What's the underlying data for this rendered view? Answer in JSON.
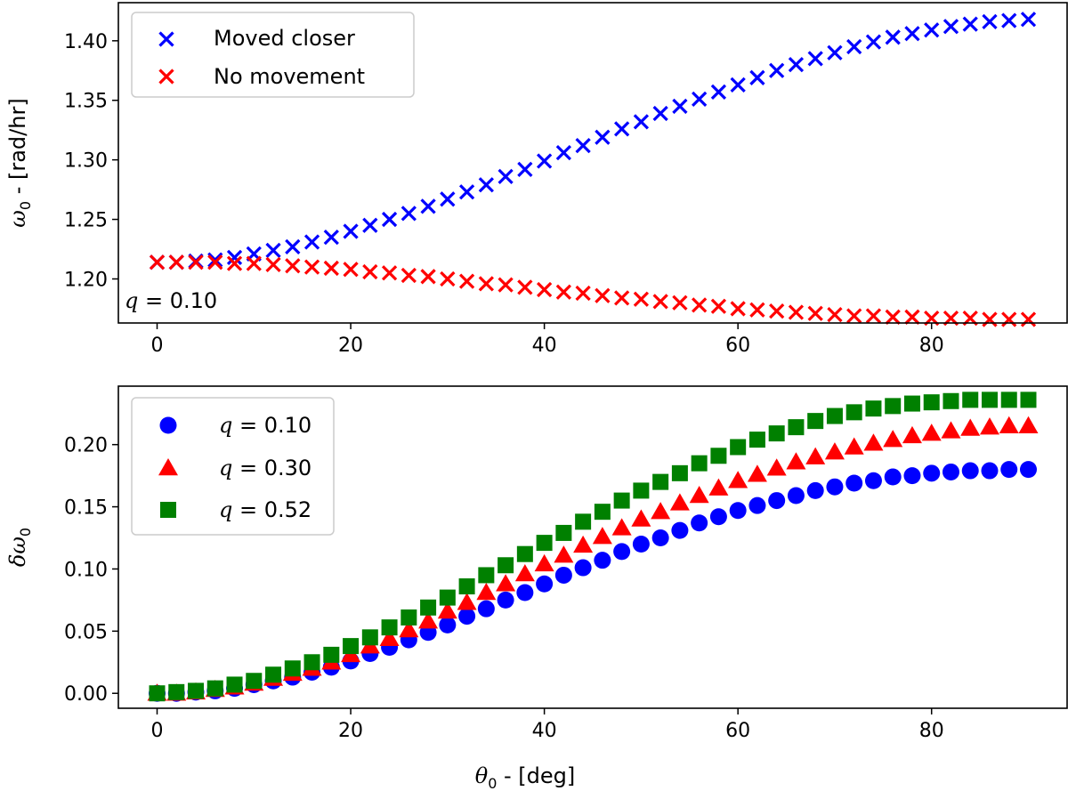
{
  "chart_data": [
    {
      "type": "scatter",
      "title": "",
      "xlabel": "",
      "ylabel_symbol": "ω",
      "ylabel_sub": "0",
      "ylabel_unit": " - [rad/hr]",
      "xlim": [
        -4,
        94
      ],
      "ylim": [
        1.163,
        1.432
      ],
      "xticks": [
        0,
        20,
        40,
        60,
        80
      ],
      "yticks": [
        1.2,
        1.25,
        1.3,
        1.35,
        1.4
      ],
      "ytick_labels": [
        "1.20",
        "1.25",
        "1.30",
        "1.35",
        "1.40"
      ],
      "annotation": {
        "symbol": "q",
        "text": " = 0.10",
        "placement": "bottom-left"
      },
      "legend_placement": "upper-left",
      "series": [
        {
          "name": "Moved closer",
          "marker": "x",
          "color": "#0000ff",
          "x": [
            0,
            2,
            4,
            6,
            8,
            10,
            12,
            14,
            16,
            18,
            20,
            22,
            24,
            26,
            28,
            30,
            32,
            34,
            36,
            38,
            40,
            42,
            44,
            46,
            48,
            50,
            52,
            54,
            56,
            58,
            60,
            62,
            64,
            66,
            68,
            70,
            72,
            74,
            76,
            78,
            80,
            82,
            84,
            86,
            88,
            90
          ],
          "y": [
            1.214,
            1.214,
            1.215,
            1.216,
            1.218,
            1.221,
            1.224,
            1.227,
            1.231,
            1.235,
            1.24,
            1.245,
            1.25,
            1.255,
            1.261,
            1.267,
            1.273,
            1.279,
            1.286,
            1.292,
            1.299,
            1.306,
            1.312,
            1.319,
            1.326,
            1.332,
            1.339,
            1.345,
            1.351,
            1.357,
            1.363,
            1.369,
            1.375,
            1.38,
            1.385,
            1.39,
            1.395,
            1.399,
            1.403,
            1.406,
            1.409,
            1.412,
            1.414,
            1.416,
            1.417,
            1.418
          ]
        },
        {
          "name": "No movement",
          "marker": "x",
          "color": "#ff0000",
          "x": [
            0,
            2,
            4,
            6,
            8,
            10,
            12,
            14,
            16,
            18,
            20,
            22,
            24,
            26,
            28,
            30,
            32,
            34,
            36,
            38,
            40,
            42,
            44,
            46,
            48,
            50,
            52,
            54,
            56,
            58,
            60,
            62,
            64,
            66,
            68,
            70,
            72,
            74,
            76,
            78,
            80,
            82,
            84,
            86,
            88,
            90
          ],
          "y": [
            1.214,
            1.214,
            1.214,
            1.214,
            1.213,
            1.213,
            1.212,
            1.211,
            1.21,
            1.209,
            1.208,
            1.206,
            1.205,
            1.203,
            1.202,
            1.2,
            1.198,
            1.196,
            1.195,
            1.193,
            1.191,
            1.189,
            1.188,
            1.186,
            1.184,
            1.183,
            1.181,
            1.18,
            1.178,
            1.177,
            1.175,
            1.174,
            1.173,
            1.172,
            1.171,
            1.17,
            1.169,
            1.169,
            1.168,
            1.168,
            1.167,
            1.167,
            1.167,
            1.166,
            1.166,
            1.166
          ]
        }
      ]
    },
    {
      "type": "scatter",
      "title": "",
      "xlabel_symbol": "θ",
      "xlabel_sub": "0",
      "xlabel_unit": " - [deg]",
      "ylabel_symbol": "δω",
      "ylabel_sub": "0",
      "xlim": [
        -4,
        94
      ],
      "ylim": [
        -0.012,
        0.247
      ],
      "xticks": [
        0,
        20,
        40,
        60,
        80
      ],
      "yticks": [
        0.0,
        0.05,
        0.1,
        0.15,
        0.2
      ],
      "ytick_labels": [
        "0.00",
        "0.05",
        "0.10",
        "0.15",
        "0.20"
      ],
      "legend_placement": "upper-left",
      "series": [
        {
          "name_symbol": "q",
          "name_value": " = 0.10",
          "marker": "circle",
          "color": "#0000ff",
          "x": [
            0,
            2,
            4,
            6,
            8,
            10,
            12,
            14,
            16,
            18,
            20,
            22,
            24,
            26,
            28,
            30,
            32,
            34,
            36,
            38,
            40,
            42,
            44,
            46,
            48,
            50,
            52,
            54,
            56,
            58,
            60,
            62,
            64,
            66,
            68,
            70,
            72,
            74,
            76,
            78,
            80,
            82,
            84,
            86,
            88,
            90
          ],
          "y": [
            0.0,
            0.0,
            0.001,
            0.002,
            0.004,
            0.007,
            0.01,
            0.013,
            0.017,
            0.021,
            0.026,
            0.032,
            0.037,
            0.043,
            0.049,
            0.055,
            0.062,
            0.068,
            0.075,
            0.081,
            0.088,
            0.095,
            0.101,
            0.107,
            0.114,
            0.12,
            0.125,
            0.131,
            0.137,
            0.142,
            0.147,
            0.151,
            0.155,
            0.159,
            0.163,
            0.166,
            0.169,
            0.171,
            0.174,
            0.175,
            0.177,
            0.178,
            0.179,
            0.179,
            0.18,
            0.18
          ]
        },
        {
          "name_symbol": "q",
          "name_value": " = 0.30",
          "marker": "triangle",
          "color": "#ff0000",
          "x": [
            0,
            2,
            4,
            6,
            8,
            10,
            12,
            14,
            16,
            18,
            20,
            22,
            24,
            26,
            28,
            30,
            32,
            34,
            36,
            38,
            40,
            42,
            44,
            46,
            48,
            50,
            52,
            54,
            56,
            58,
            60,
            62,
            64,
            66,
            68,
            70,
            72,
            74,
            76,
            78,
            80,
            82,
            84,
            86,
            88,
            90
          ],
          "y": [
            0.0,
            0.0,
            0.001,
            0.003,
            0.005,
            0.008,
            0.012,
            0.016,
            0.02,
            0.025,
            0.031,
            0.038,
            0.044,
            0.051,
            0.058,
            0.066,
            0.073,
            0.081,
            0.088,
            0.096,
            0.104,
            0.111,
            0.119,
            0.126,
            0.133,
            0.14,
            0.146,
            0.153,
            0.159,
            0.165,
            0.171,
            0.176,
            0.181,
            0.186,
            0.19,
            0.194,
            0.198,
            0.201,
            0.204,
            0.207,
            0.209,
            0.211,
            0.213,
            0.214,
            0.215,
            0.215
          ]
        },
        {
          "name_symbol": "q",
          "name_value": " = 0.52",
          "marker": "square",
          "color": "#008000",
          "x": [
            0,
            2,
            4,
            6,
            8,
            10,
            12,
            14,
            16,
            18,
            20,
            22,
            24,
            26,
            28,
            30,
            32,
            34,
            36,
            38,
            40,
            42,
            44,
            46,
            48,
            50,
            52,
            54,
            56,
            58,
            60,
            62,
            64,
            66,
            68,
            70,
            72,
            74,
            76,
            78,
            80,
            82,
            84,
            86,
            88,
            90
          ],
          "y": [
            0.0,
            0.001,
            0.002,
            0.004,
            0.007,
            0.01,
            0.015,
            0.02,
            0.025,
            0.031,
            0.038,
            0.045,
            0.053,
            0.061,
            0.069,
            0.077,
            0.086,
            0.095,
            0.103,
            0.112,
            0.121,
            0.129,
            0.138,
            0.146,
            0.155,
            0.163,
            0.17,
            0.177,
            0.185,
            0.191,
            0.198,
            0.204,
            0.209,
            0.214,
            0.219,
            0.223,
            0.226,
            0.229,
            0.231,
            0.233,
            0.234,
            0.235,
            0.236,
            0.236,
            0.236,
            0.236
          ]
        }
      ]
    }
  ]
}
